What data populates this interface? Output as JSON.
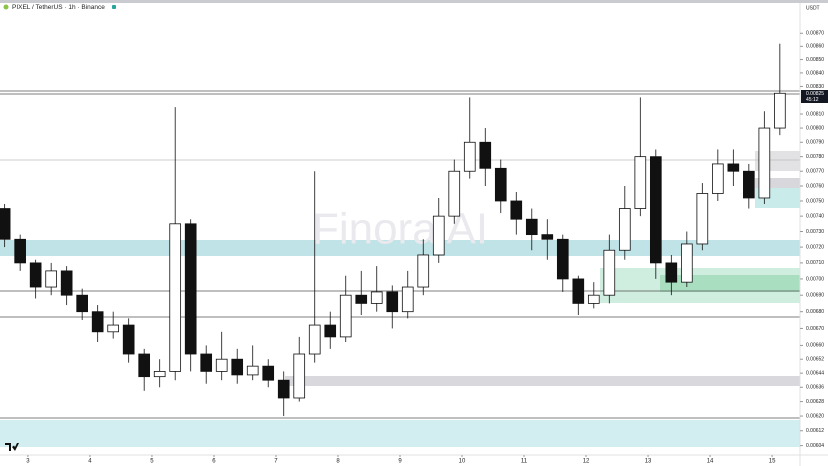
{
  "chart_data": {
    "type": "candlestick",
    "title": "PIXEL / TetherUS · 1h · Binance",
    "y_axis_label": "USDT",
    "watermark": "Finora AI",
    "price_tag": "0.00825",
    "countdown": "45:12",
    "log_scale": true,
    "grid": false,
    "up_color": "#ffffff",
    "down_color": "#111111",
    "outline_color": "#111111",
    "xlim": [
      2.55,
      15.45
    ],
    "xticks": [
      3,
      4,
      5,
      6,
      7,
      8,
      9,
      10,
      11,
      12,
      13,
      14,
      15
    ],
    "ylim": [
      0.00599,
      0.00896
    ],
    "yticks": [
      {
        "value": 0.0087,
        "label": "0.00870"
      },
      {
        "value": 0.0086,
        "label": "0.00860"
      },
      {
        "value": 0.0085,
        "label": "0.00850"
      },
      {
        "value": 0.0084,
        "label": "0.00840"
      },
      {
        "value": 0.0083,
        "label": "0.00830"
      },
      {
        "value": 0.0081,
        "label": "0.00810"
      },
      {
        "value": 0.008,
        "label": "0.00800"
      },
      {
        "value": 0.0079,
        "label": "0.00790"
      },
      {
        "value": 0.0078,
        "label": "0.00780"
      },
      {
        "value": 0.0077,
        "label": "0.00770"
      },
      {
        "value": 0.0076,
        "label": "0.00760"
      },
      {
        "value": 0.0075,
        "label": "0.00750"
      },
      {
        "value": 0.0074,
        "label": "0.00740"
      },
      {
        "value": 0.0073,
        "label": "0.00730"
      },
      {
        "value": 0.0072,
        "label": "0.00720"
      },
      {
        "value": 0.0071,
        "label": "0.00710"
      },
      {
        "value": 0.007,
        "label": "0.00700"
      },
      {
        "value": 0.0069,
        "label": "0.00690"
      },
      {
        "value": 0.0068,
        "label": "0.00680"
      },
      {
        "value": 0.0067,
        "label": "0.00670"
      },
      {
        "value": 0.0066,
        "label": "0.00660"
      },
      {
        "value": 0.00652,
        "label": "0.00652"
      },
      {
        "value": 0.00644,
        "label": "0.00644"
      },
      {
        "value": 0.00636,
        "label": "0.00636"
      },
      {
        "value": 0.00628,
        "label": "0.00628"
      },
      {
        "value": 0.0062,
        "label": "0.00620"
      },
      {
        "value": 0.00612,
        "label": "0.00612"
      },
      {
        "value": 0.00604,
        "label": "0.00604"
      }
    ],
    "x": [
      2.625,
      2.875,
      3.125,
      3.375,
      3.625,
      3.875,
      4.125,
      4.375,
      4.625,
      4.875,
      5.125,
      5.375,
      5.625,
      5.875,
      6.125,
      6.375,
      6.625,
      6.875,
      7.125,
      7.375,
      7.625,
      7.875,
      8.125,
      8.375,
      8.625,
      8.875,
      9.125,
      9.375,
      9.625,
      9.875,
      10.125,
      10.375,
      10.625,
      10.875,
      11.125,
      11.375,
      11.625,
      11.875,
      12.125,
      12.375,
      12.625,
      12.875,
      13.125,
      13.375,
      13.625,
      13.875,
      14.125,
      14.375,
      14.625,
      14.875,
      15.125
    ],
    "open": [
      0.00745,
      0.00725,
      0.0071,
      0.00695,
      0.00705,
      0.0069,
      0.0068,
      0.00668,
      0.00672,
      0.00655,
      0.00642,
      0.00645,
      0.00735,
      0.00655,
      0.00645,
      0.00652,
      0.00643,
      0.00648,
      0.0064,
      0.0063,
      0.00655,
      0.00672,
      0.00665,
      0.0069,
      0.00685,
      0.00692,
      0.0068,
      0.00695,
      0.00715,
      0.0074,
      0.0077,
      0.0079,
      0.00772,
      0.0075,
      0.00738,
      0.00728,
      0.00725,
      0.007,
      0.00685,
      0.0069,
      0.00718,
      0.00745,
      0.0078,
      0.0071,
      0.00698,
      0.00722,
      0.00755,
      0.00775,
      0.0077,
      0.00752,
      0.008
    ],
    "high": [
      0.00748,
      0.00728,
      0.00712,
      0.0071,
      0.00708,
      0.00694,
      0.00684,
      0.0068,
      0.00676,
      0.00658,
      0.00652,
      0.00815,
      0.00738,
      0.0066,
      0.00668,
      0.00658,
      0.0066,
      0.00652,
      0.00645,
      0.00665,
      0.0077,
      0.0068,
      0.00702,
      0.00705,
      0.00708,
      0.00696,
      0.00705,
      0.00725,
      0.00752,
      0.00778,
      0.00822,
      0.008,
      0.00778,
      0.00756,
      0.00745,
      0.00738,
      0.00728,
      0.00702,
      0.00698,
      0.00728,
      0.0076,
      0.00822,
      0.00785,
      0.00715,
      0.0073,
      0.00762,
      0.00785,
      0.00785,
      0.00775,
      0.00812,
      0.00862
    ],
    "low": [
      0.0072,
      0.00705,
      0.00688,
      0.0069,
      0.00684,
      0.00675,
      0.00662,
      0.00664,
      0.0065,
      0.00634,
      0.00636,
      0.0064,
      0.00645,
      0.00638,
      0.0064,
      0.00638,
      0.0064,
      0.00636,
      0.0062,
      0.00628,
      0.0065,
      0.00658,
      0.00662,
      0.00678,
      0.0068,
      0.0067,
      0.00676,
      0.0069,
      0.0071,
      0.00735,
      0.00765,
      0.0076,
      0.00742,
      0.00728,
      0.00718,
      0.00712,
      0.00692,
      0.00678,
      0.00682,
      0.00685,
      0.00712,
      0.0074,
      0.007,
      0.0069,
      0.00695,
      0.00718,
      0.0075,
      0.0076,
      0.00745,
      0.00748,
      0.00795
    ],
    "close": [
      0.00725,
      0.0071,
      0.00695,
      0.00705,
      0.0069,
      0.0068,
      0.00668,
      0.00672,
      0.00655,
      0.00642,
      0.00645,
      0.00735,
      0.00655,
      0.00645,
      0.00652,
      0.00643,
      0.00648,
      0.0064,
      0.0063,
      0.00655,
      0.00672,
      0.00665,
      0.0069,
      0.00685,
      0.00692,
      0.0068,
      0.00695,
      0.00715,
      0.0074,
      0.0077,
      0.0079,
      0.00772,
      0.0075,
      0.00738,
      0.00728,
      0.00725,
      0.007,
      0.00685,
      0.0069,
      0.00718,
      0.00745,
      0.0078,
      0.0071,
      0.00698,
      0.00722,
      0.00755,
      0.00775,
      0.0077,
      0.00752,
      0.008,
      0.00825
    ]
  }
}
